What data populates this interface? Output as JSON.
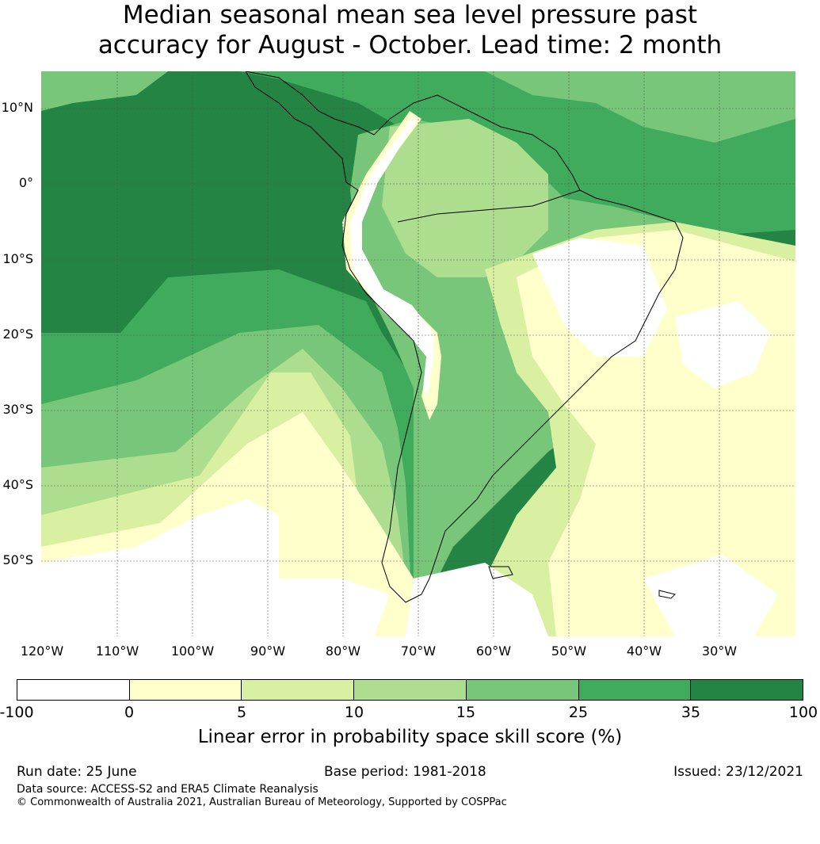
{
  "title": {
    "line1": "Median seasonal mean sea level pressure past",
    "line2": "accuracy for August - October. Lead time: 2 month"
  },
  "map": {
    "lat_labels": [
      "10°N",
      "0°",
      "10°S",
      "20°S",
      "30°S",
      "40°S",
      "50°S"
    ],
    "lon_labels": [
      "120°W",
      "110°W",
      "100°W",
      "90°W",
      "80°W",
      "70°W",
      "60°W",
      "50°W",
      "40°W",
      "30°W"
    ],
    "gridlines": "dotted",
    "colors": {
      "neg": "#ffffff",
      "c0_5": "#ffffcc",
      "c5_10": "#d9f0a3",
      "c10_15": "#addd8e",
      "c15_25": "#78c679",
      "c25_35": "#41ab5d",
      "c35_100": "#238443",
      "coast": "#000000"
    }
  },
  "colorbar": {
    "ticks": [
      "-100",
      "0",
      "5",
      "10",
      "15",
      "25",
      "35",
      "100"
    ],
    "colors": [
      "#ffffff",
      "#ffffcc",
      "#d9f0a3",
      "#addd8e",
      "#78c679",
      "#41ab5d",
      "#238443"
    ],
    "label": "Linear error in probability space skill score (%)"
  },
  "footer": {
    "run_date": "Run date: 25 June",
    "base_period": "Base period: 1981-2018",
    "issued": "Issued: 23/12/2021",
    "data_source": "Data source: ACCESS-S2 and ERA5 Climate Reanalysis",
    "copyright": "© Commonwealth of Australia 2021, Australian Bureau of Meteorology, Supported by COSPPac"
  }
}
